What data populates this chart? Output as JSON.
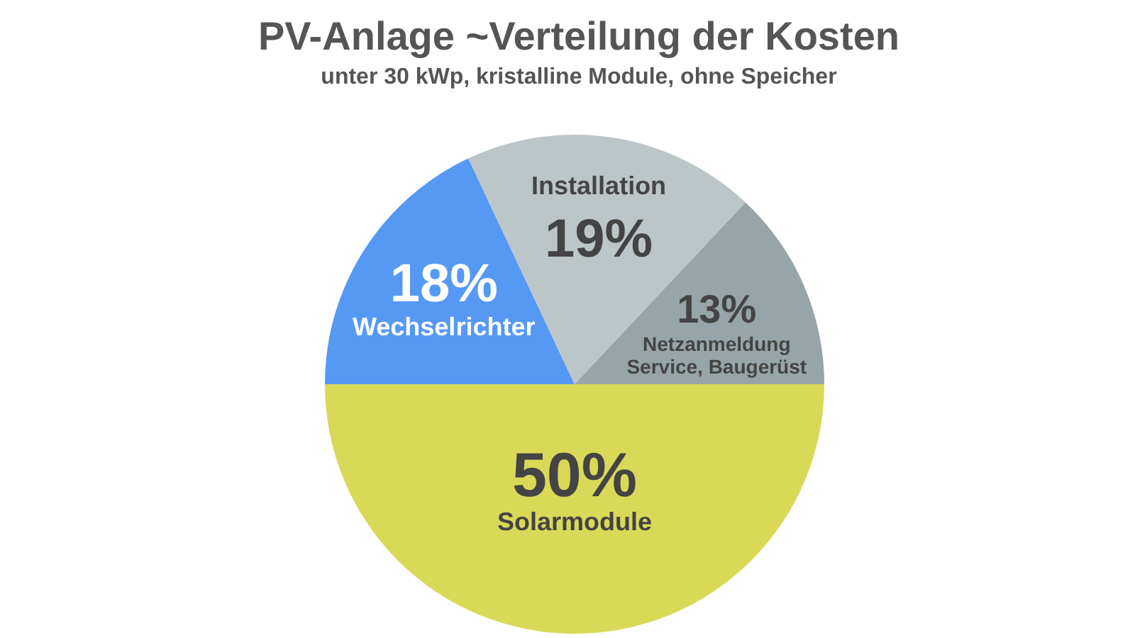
{
  "chart_data": {
    "type": "pie",
    "title": "PV-Anlage ~Verteilung der Kosten",
    "subtitle": "unter 30 kWp, kristalline Module, ohne Speicher",
    "categories": [
      "Wechselrichter",
      "Installation",
      "Netzanmeldung\nService, Baugerüst",
      "Solarmodule"
    ],
    "values": [
      18,
      19,
      13,
      50
    ],
    "value_labels": [
      "18%",
      "19%",
      "13%",
      "50%"
    ],
    "colors": [
      "#5599f5",
      "#bcc5c7",
      "#98a5a8",
      "#d9d958"
    ],
    "legend": false
  }
}
